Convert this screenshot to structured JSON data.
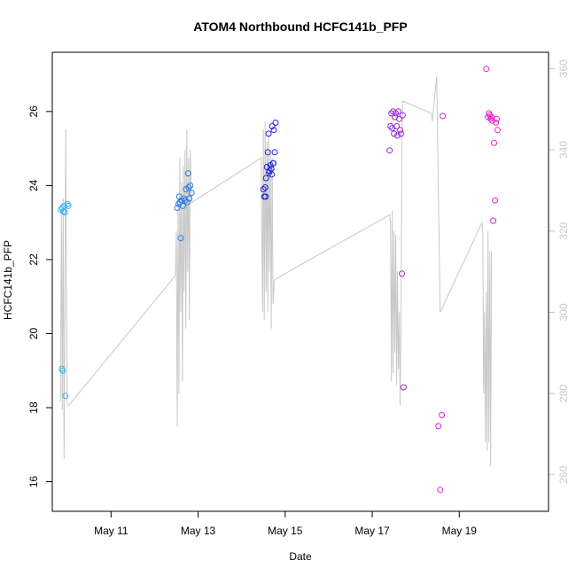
{
  "chart_data": {
    "type": "scatter",
    "title": "ATOM4 Northbound HCFC141b_PFP",
    "xlabel": "Date",
    "ylabel": "HCFC141b_PFP",
    "x_axis": {
      "unit": "day of May",
      "range": [
        9.65,
        21.05
      ],
      "ticks": [
        {
          "value": 11,
          "label": "May 11"
        },
        {
          "value": 13,
          "label": "May 13"
        },
        {
          "value": 15,
          "label": "May 15"
        },
        {
          "value": 17,
          "label": "May 17"
        },
        {
          "value": 19,
          "label": "May 19"
        }
      ]
    },
    "y_axis_left": {
      "range": [
        15.2,
        27.6
      ],
      "ticks": [
        16,
        18,
        20,
        22,
        24,
        26
      ]
    },
    "y_axis_right": {
      "color": "#c8c8c8",
      "range": [
        251,
        364
      ],
      "ticks": [
        260,
        280,
        300,
        320,
        340,
        360
      ]
    },
    "grid": false,
    "legend": "none",
    "series": [
      {
        "kind": "points",
        "axis": "left",
        "points": [
          {
            "x": 9.85,
            "y": 23.35,
            "color": "#3ab0f0"
          },
          {
            "x": 9.88,
            "y": 23.4,
            "color": "#3ab0f0"
          },
          {
            "x": 9.9,
            "y": 23.3,
            "color": "#3ab0f0"
          },
          {
            "x": 9.92,
            "y": 23.45,
            "color": "#3ab0f0"
          },
          {
            "x": 9.94,
            "y": 23.28,
            "color": "#3ab0f0"
          },
          {
            "x": 10.0,
            "y": 23.5,
            "color": "#3ab0f0"
          },
          {
            "x": 10.02,
            "y": 23.45,
            "color": "#3ab0f0"
          },
          {
            "x": 9.87,
            "y": 19.05,
            "color": "#3ab0f0"
          },
          {
            "x": 9.89,
            "y": 19.0,
            "color": "#3ab0f0"
          },
          {
            "x": 9.95,
            "y": 18.32,
            "color": "#3ab0f0"
          },
          {
            "x": 12.52,
            "y": 23.4,
            "color": "#2c7be8"
          },
          {
            "x": 12.55,
            "y": 23.5,
            "color": "#2c7be8"
          },
          {
            "x": 12.57,
            "y": 23.7,
            "color": "#2c7be8"
          },
          {
            "x": 12.6,
            "y": 22.58,
            "color": "#2c7be8"
          },
          {
            "x": 12.62,
            "y": 23.6,
            "color": "#2c7be8"
          },
          {
            "x": 12.65,
            "y": 23.45,
            "color": "#2c7be8"
          },
          {
            "x": 12.67,
            "y": 23.65,
            "color": "#2c7be8"
          },
          {
            "x": 12.7,
            "y": 23.6,
            "color": "#2c7be8"
          },
          {
            "x": 12.72,
            "y": 23.9,
            "color": "#2c7be8"
          },
          {
            "x": 12.75,
            "y": 23.55,
            "color": "#2c7be8"
          },
          {
            "x": 12.77,
            "y": 24.33,
            "color": "#2c7be8"
          },
          {
            "x": 12.8,
            "y": 23.65,
            "color": "#2c7be8"
          },
          {
            "x": 12.82,
            "y": 24.0,
            "color": "#2c7be8"
          },
          {
            "x": 12.85,
            "y": 23.8,
            "color": "#2c7be8"
          },
          {
            "x": 12.78,
            "y": 23.95,
            "color": "#2c7be8"
          },
          {
            "x": 12.58,
            "y": 23.55,
            "color": "#2c7be8"
          },
          {
            "x": 14.5,
            "y": 23.9,
            "color": "#2222dd"
          },
          {
            "x": 14.52,
            "y": 23.7,
            "color": "#2222dd"
          },
          {
            "x": 14.54,
            "y": 23.95,
            "color": "#2222dd"
          },
          {
            "x": 14.56,
            "y": 24.2,
            "color": "#2222dd"
          },
          {
            "x": 14.58,
            "y": 24.5,
            "color": "#2222dd"
          },
          {
            "x": 14.6,
            "y": 24.9,
            "color": "#2222dd"
          },
          {
            "x": 14.62,
            "y": 25.4,
            "color": "#2222dd"
          },
          {
            "x": 14.64,
            "y": 24.4,
            "color": "#2222dd"
          },
          {
            "x": 14.66,
            "y": 24.55,
            "color": "#2222dd"
          },
          {
            "x": 14.68,
            "y": 24.45,
            "color": "#2222dd"
          },
          {
            "x": 14.7,
            "y": 25.6,
            "color": "#2222dd"
          },
          {
            "x": 14.72,
            "y": 24.6,
            "color": "#2222dd"
          },
          {
            "x": 14.74,
            "y": 25.5,
            "color": "#2222dd"
          },
          {
            "x": 14.76,
            "y": 24.9,
            "color": "#2222dd"
          },
          {
            "x": 14.78,
            "y": 25.7,
            "color": "#2222dd"
          },
          {
            "x": 14.55,
            "y": 23.7,
            "color": "#2222dd"
          },
          {
            "x": 14.63,
            "y": 24.35,
            "color": "#2222dd"
          },
          {
            "x": 14.69,
            "y": 24.3,
            "color": "#2222dd"
          },
          {
            "x": 14.73,
            "y": 24.6,
            "color": "#2222dd"
          },
          {
            "x": 17.4,
            "y": 24.95,
            "color": "#9a28d8"
          },
          {
            "x": 17.42,
            "y": 25.6,
            "color": "#9a28d8"
          },
          {
            "x": 17.44,
            "y": 25.95,
            "color": "#9a28d8"
          },
          {
            "x": 17.46,
            "y": 25.55,
            "color": "#9a28d8"
          },
          {
            "x": 17.48,
            "y": 26.0,
            "color": "#9a28d8"
          },
          {
            "x": 17.5,
            "y": 25.4,
            "color": "#9a28d8"
          },
          {
            "x": 17.52,
            "y": 25.85,
            "color": "#9a28d8"
          },
          {
            "x": 17.54,
            "y": 25.95,
            "color": "#9a28d8"
          },
          {
            "x": 17.56,
            "y": 25.6,
            "color": "#9a28d8"
          },
          {
            "x": 17.58,
            "y": 25.35,
            "color": "#9a28d8"
          },
          {
            "x": 17.6,
            "y": 26.0,
            "color": "#9a28d8"
          },
          {
            "x": 17.62,
            "y": 25.8,
            "color": "#9a28d8"
          },
          {
            "x": 17.64,
            "y": 25.5,
            "color": "#9a28d8"
          },
          {
            "x": 17.66,
            "y": 25.4,
            "color": "#9a28d8"
          },
          {
            "x": 17.68,
            "y": 21.62,
            "color": "#9a28d8"
          },
          {
            "x": 17.7,
            "y": 25.9,
            "color": "#9a28d8"
          },
          {
            "x": 17.72,
            "y": 18.55,
            "color": "#9a28d8"
          },
          {
            "x": 18.52,
            "y": 17.5,
            "color": "#dd22dd"
          },
          {
            "x": 18.56,
            "y": 15.78,
            "color": "#dd22dd"
          },
          {
            "x": 18.6,
            "y": 17.8,
            "color": "#dd22dd"
          },
          {
            "x": 18.62,
            "y": 25.88,
            "color": "#dd22dd"
          },
          {
            "x": 19.62,
            "y": 27.15,
            "color": "#ee22cc"
          },
          {
            "x": 19.66,
            "y": 25.85,
            "color": "#ee22cc"
          },
          {
            "x": 19.68,
            "y": 25.95,
            "color": "#ee22cc"
          },
          {
            "x": 19.7,
            "y": 25.9,
            "color": "#ee22cc"
          },
          {
            "x": 19.72,
            "y": 25.8,
            "color": "#ee22cc"
          },
          {
            "x": 19.74,
            "y": 25.85,
            "color": "#ee22cc"
          },
          {
            "x": 19.76,
            "y": 25.75,
            "color": "#ee22cc"
          },
          {
            "x": 19.78,
            "y": 23.05,
            "color": "#ee22cc"
          },
          {
            "x": 19.8,
            "y": 25.15,
            "color": "#ee22cc"
          },
          {
            "x": 19.82,
            "y": 23.6,
            "color": "#ee22cc"
          },
          {
            "x": 19.84,
            "y": 25.7,
            "color": "#ee22cc"
          },
          {
            "x": 19.86,
            "y": 25.8,
            "color": "#ee22cc"
          },
          {
            "x": 19.88,
            "y": 25.5,
            "color": "#ee22cc"
          }
        ]
      },
      {
        "kind": "line",
        "axis": "right",
        "color": "#c8c8c8",
        "points": [
          [
            9.84,
            278
          ],
          [
            9.86,
            325
          ],
          [
            9.88,
            276
          ],
          [
            9.9,
            328
          ],
          [
            9.92,
            264
          ],
          [
            9.94,
            300
          ],
          [
            9.96,
            345
          ],
          [
            9.99,
            278
          ],
          [
            10.02,
            277
          ],
          [
            12.48,
            309
          ],
          [
            12.5,
            320
          ],
          [
            12.52,
            272
          ],
          [
            12.54,
            328
          ],
          [
            12.56,
            280
          ],
          [
            12.58,
            338
          ],
          [
            12.6,
            300
          ],
          [
            12.62,
            332
          ],
          [
            12.64,
            283
          ],
          [
            12.66,
            336
          ],
          [
            12.68,
            305
          ],
          [
            12.7,
            340
          ],
          [
            12.72,
            296
          ],
          [
            12.74,
            345
          ],
          [
            12.76,
            310
          ],
          [
            12.78,
            338
          ],
          [
            12.8,
            298
          ],
          [
            12.82,
            340
          ],
          [
            12.85,
            327
          ],
          [
            14.45,
            338
          ],
          [
            14.48,
            300
          ],
          [
            14.5,
            345
          ],
          [
            14.52,
            298
          ],
          [
            14.54,
            347
          ],
          [
            14.56,
            305
          ],
          [
            14.58,
            342
          ],
          [
            14.6,
            300
          ],
          [
            14.62,
            344
          ],
          [
            14.64,
            310
          ],
          [
            14.66,
            340
          ],
          [
            14.68,
            296
          ],
          [
            14.7,
            338
          ],
          [
            14.72,
            302
          ],
          [
            14.75,
            308
          ],
          [
            17.4,
            324
          ],
          [
            17.42,
            322
          ],
          [
            17.44,
            283
          ],
          [
            17.46,
            325
          ],
          [
            17.48,
            285
          ],
          [
            17.5,
            320
          ],
          [
            17.52,
            290
          ],
          [
            17.54,
            319
          ],
          [
            17.56,
            282
          ],
          [
            17.58,
            310
          ],
          [
            17.6,
            286
          ],
          [
            17.62,
            300
          ],
          [
            17.64,
            277
          ],
          [
            17.66,
            297
          ],
          [
            17.68,
            340
          ],
          [
            17.7,
            352
          ],
          [
            18.36,
            349
          ],
          [
            18.38,
            347
          ],
          [
            18.48,
            358
          ],
          [
            18.56,
            300
          ],
          [
            19.52,
            322
          ],
          [
            19.54,
            320
          ],
          [
            19.56,
            280
          ],
          [
            19.58,
            300
          ],
          [
            19.6,
            268
          ],
          [
            19.62,
            305
          ],
          [
            19.64,
            266
          ],
          [
            19.66,
            320
          ],
          [
            19.68,
            268
          ],
          [
            19.7,
            315
          ],
          [
            19.72,
            262
          ],
          [
            19.74,
            315
          ]
        ]
      }
    ]
  }
}
